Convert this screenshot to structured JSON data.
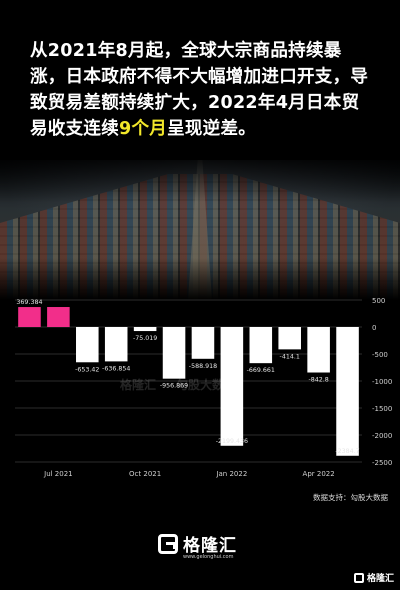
{
  "headline": {
    "before": "从2021年8月起，全球大宗商品持续暴涨，日本政府不得不大幅增加进口开支，导致贸易差额持续扩大，2022年4月日本贸易收支连续",
    "highlight": "9个月",
    "after": "呈现逆差。"
  },
  "colors": {
    "positive": "#f22e8a",
    "negative": "#ffffff",
    "highlight": "#f2e72a",
    "background": "#000000",
    "grid": "#2b2b2b",
    "axis_text": "#cfcfcf"
  },
  "chart_data": {
    "type": "bar",
    "categories": [
      "Jun 2021",
      "Jul 2021",
      "Aug 2021",
      "Sep 2021",
      "Oct 2021",
      "Nov 2021",
      "Dec 2021",
      "Jan 2022",
      "Feb 2022",
      "Mar 2022",
      "Apr 2022",
      "May 2022"
    ],
    "values": [
      369.384,
      370,
      -653.42,
      -636.854,
      -75.019,
      -956.869,
      -588.918,
      -2199.436,
      -669.661,
      -414.1,
      -842.8,
      -2384.7
    ],
    "data_labels": [
      "369.384",
      "",
      "-653.42",
      "-636.854",
      "-75.019",
      "-956.869",
      "-588.918",
      "-2199.436",
      "-669.661",
      "-414.1",
      "-842.8",
      "-2384.7"
    ],
    "x_tick_labels": [
      "Jul 2021",
      "Oct 2021",
      "Jan 2022",
      "Apr 2022"
    ],
    "x_tick_positions": [
      1,
      4,
      7,
      10
    ],
    "y_ticks": [
      500,
      0,
      -500,
      -1000,
      -1500,
      -2000,
      -2500
    ],
    "ylim": [
      -2500,
      500
    ],
    "grid": true,
    "title": "",
    "xlabel": "",
    "ylabel": ""
  },
  "watermarks": [
    "格隆汇",
    "勾股大数据"
  ],
  "source": "数据支持：勾股大数据",
  "brand": {
    "name": "格隆汇",
    "url": "www.gelonghui.com"
  },
  "corner_brand": "格隆汇"
}
